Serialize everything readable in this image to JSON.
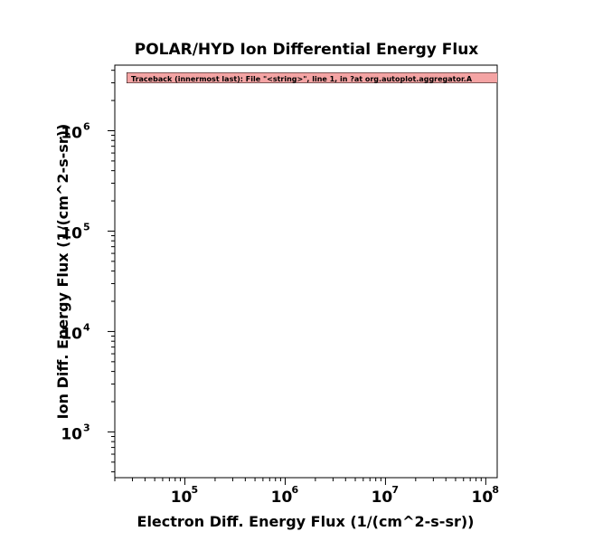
{
  "chart_data": {
    "type": "scatter",
    "title": "POLAR/HYD  Ion Differential Energy Flux",
    "xlabel": "Electron Diff. Energy Flux (1/(cm^2-s-sr))",
    "ylabel": "Ion Diff. Energy Flux (1/(cm^2-s-sr))",
    "x_scale": "log",
    "y_scale": "log",
    "xlim": [
      20000,
      130000000
    ],
    "ylim": [
      350,
      4500000
    ],
    "x_major_ticks": [
      {
        "value": 100000,
        "base": "10",
        "exp": "5"
      },
      {
        "value": 1000000,
        "base": "10",
        "exp": "6"
      },
      {
        "value": 10000000,
        "base": "10",
        "exp": "7"
      },
      {
        "value": 100000000,
        "base": "10",
        "exp": "8"
      }
    ],
    "y_major_ticks": [
      {
        "value": 1000,
        "base": "10",
        "exp": "3"
      },
      {
        "value": 10000,
        "base": "10",
        "exp": "4"
      },
      {
        "value": 100000,
        "base": "10",
        "exp": "5"
      },
      {
        "value": 1000000,
        "base": "10",
        "exp": "6"
      }
    ],
    "series": [],
    "grid": false,
    "error_message": "Traceback (innermost last): File \"<string>\", line 1, in ?at org.autoplot.aggregator.A",
    "error_color": "#f4a4a4"
  }
}
